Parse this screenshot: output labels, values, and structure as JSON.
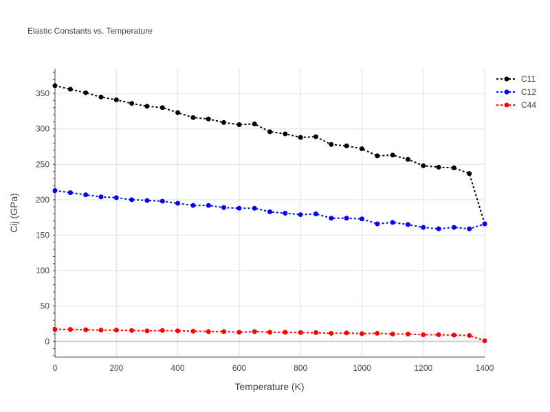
{
  "chart_data": {
    "type": "line",
    "title": "Elastic Constants vs. Temperature",
    "xlabel": "Temperature (K)",
    "ylabel": "Cij (GPa)",
    "xlim": [
      0,
      1400
    ],
    "ylim": [
      -22,
      385
    ],
    "x_ticks": [
      0,
      200,
      400,
      600,
      800,
      1000,
      1200,
      1400
    ],
    "y_ticks": [
      0,
      50,
      100,
      150,
      200,
      250,
      300,
      350
    ],
    "grid": true,
    "legend_position": "top-right",
    "line_style": "dotted",
    "x": [
      0,
      50,
      100,
      150,
      200,
      250,
      300,
      350,
      400,
      450,
      500,
      550,
      600,
      650,
      700,
      750,
      800,
      850,
      900,
      950,
      1000,
      1050,
      1100,
      1150,
      1200,
      1250,
      1300,
      1350,
      1400
    ],
    "series": [
      {
        "name": "C11",
        "color": "#000000",
        "values": [
          361,
          356,
          351,
          345,
          341,
          336,
          332,
          330,
          323,
          316,
          314,
          309,
          306,
          307,
          296,
          293,
          288,
          289,
          278,
          276,
          272,
          262,
          263,
          257,
          248,
          246,
          245,
          237,
          166
        ]
      },
      {
        "name": "C12",
        "color": "#0000ff",
        "values": [
          213,
          210,
          207,
          204,
          203,
          200,
          199,
          198,
          195,
          192,
          192,
          189,
          188,
          188,
          183,
          181,
          179,
          180,
          174,
          174,
          173,
          166,
          168,
          165,
          161,
          159,
          161,
          159,
          166
        ]
      },
      {
        "name": "C44",
        "color": "#ff0000",
        "values": [
          17,
          17,
          16.5,
          16,
          16,
          15.5,
          15,
          15.5,
          15,
          14.5,
          14,
          14,
          13,
          14,
          13,
          13,
          12.5,
          12.5,
          11.5,
          12,
          11,
          11.5,
          10.5,
          10.5,
          9.5,
          9.5,
          9,
          8.5,
          1
        ]
      }
    ]
  }
}
